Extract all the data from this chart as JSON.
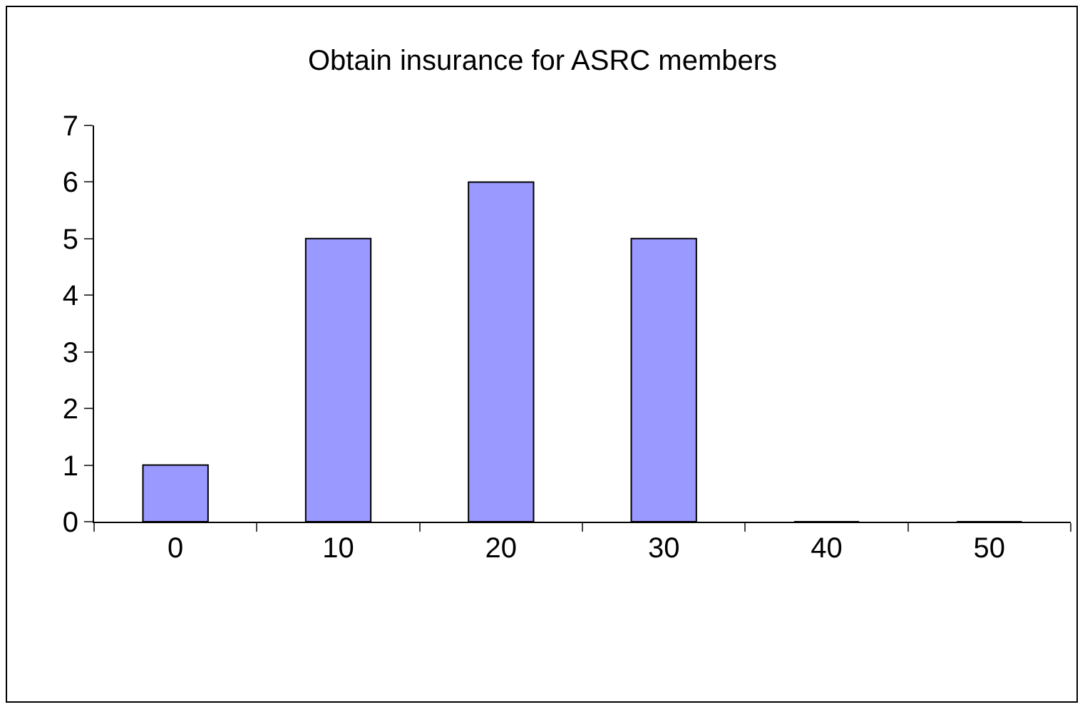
{
  "chart_data": {
    "type": "bar",
    "title": "Obtain insurance for ASRC members",
    "categories": [
      "0",
      "10",
      "20",
      "30",
      "40",
      "50"
    ],
    "values": [
      1,
      5,
      6,
      5,
      0,
      0
    ],
    "color": "#9999ff",
    "ylim": [
      0,
      7
    ],
    "yticks": [
      0,
      1,
      2,
      3,
      4,
      5,
      6,
      7
    ],
    "grid": false
  }
}
